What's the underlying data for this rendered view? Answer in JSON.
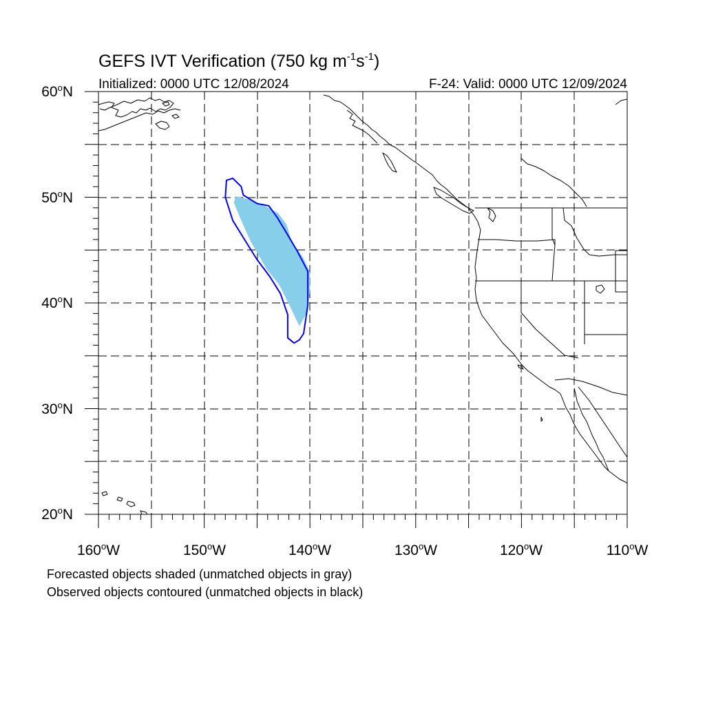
{
  "title": {
    "main": "GEFS IVT Verification (750 kg m",
    "sup1": "-1",
    "mid": "s",
    "sup2": "-1",
    "end": ")"
  },
  "subtitle": {
    "initialized": "Initialized: 0000 UTC 12/08/2024",
    "valid": "F-24: Valid: 0000 UTC 12/09/2024"
  },
  "map": {
    "lon_range": [
      -160,
      -110
    ],
    "lat_range": [
      20,
      60
    ],
    "grid": "dashed every 5 degrees",
    "lon_labels": [
      {
        "num": "160",
        "hem": "W"
      },
      {
        "num": "150",
        "hem": "W"
      },
      {
        "num": "140",
        "hem": "W"
      },
      {
        "num": "130",
        "hem": "W"
      },
      {
        "num": "120",
        "hem": "W"
      },
      {
        "num": "110",
        "hem": "W"
      }
    ],
    "lat_labels": [
      {
        "num": "60",
        "hem": "N"
      },
      {
        "num": "50",
        "hem": "N"
      },
      {
        "num": "40",
        "hem": "N"
      },
      {
        "num": "30",
        "hem": "N"
      },
      {
        "num": "20",
        "hem": "N"
      }
    ],
    "colors": {
      "forecast_fill": "#87ceeb",
      "observed_contour": "#0000ff",
      "coastline": "#000000",
      "grid": "#000000"
    },
    "forecast_object": {
      "lonlat": [
        [
          -147.0,
          50.1
        ],
        [
          -145.4,
          49.7
        ],
        [
          -144.1,
          49.1
        ],
        [
          -143.0,
          48.5
        ],
        [
          -142.2,
          47.4
        ],
        [
          -141.7,
          45.7
        ],
        [
          -140.7,
          44.4
        ],
        [
          -140.0,
          42.9
        ],
        [
          -140.0,
          41.0
        ],
        [
          -140.4,
          38.9
        ],
        [
          -141.0,
          37.8
        ],
        [
          -141.8,
          39.5
        ],
        [
          -142.9,
          41.7
        ],
        [
          -144.1,
          43.2
        ],
        [
          -145.6,
          45.8
        ],
        [
          -146.5,
          47.8
        ],
        [
          -147.2,
          49.5
        ]
      ]
    },
    "observed_object": {
      "lonlat": [
        [
          -147.3,
          51.8
        ],
        [
          -146.5,
          51.0
        ],
        [
          -146.3,
          50.2
        ],
        [
          -145.0,
          49.4
        ],
        [
          -143.9,
          49.2
        ],
        [
          -143.1,
          48.1
        ],
        [
          -142.2,
          46.6
        ],
        [
          -141.2,
          44.9
        ],
        [
          -140.2,
          43.0
        ],
        [
          -140.2,
          39.8
        ],
        [
          -140.6,
          37.1
        ],
        [
          -141.0,
          36.5
        ],
        [
          -141.5,
          36.2
        ],
        [
          -142.1,
          36.7
        ],
        [
          -142.1,
          38.9
        ],
        [
          -142.8,
          40.9
        ],
        [
          -143.8,
          42.5
        ],
        [
          -145.0,
          44.1
        ],
        [
          -146.0,
          45.7
        ],
        [
          -147.3,
          47.8
        ],
        [
          -148.0,
          50.0
        ],
        [
          -147.9,
          51.6
        ]
      ]
    }
  },
  "notes": {
    "forecast": "Forecasted objects shaded (unmatched objects in gray)",
    "observed": "Observed objects contoured (unmatched objects in black)"
  }
}
